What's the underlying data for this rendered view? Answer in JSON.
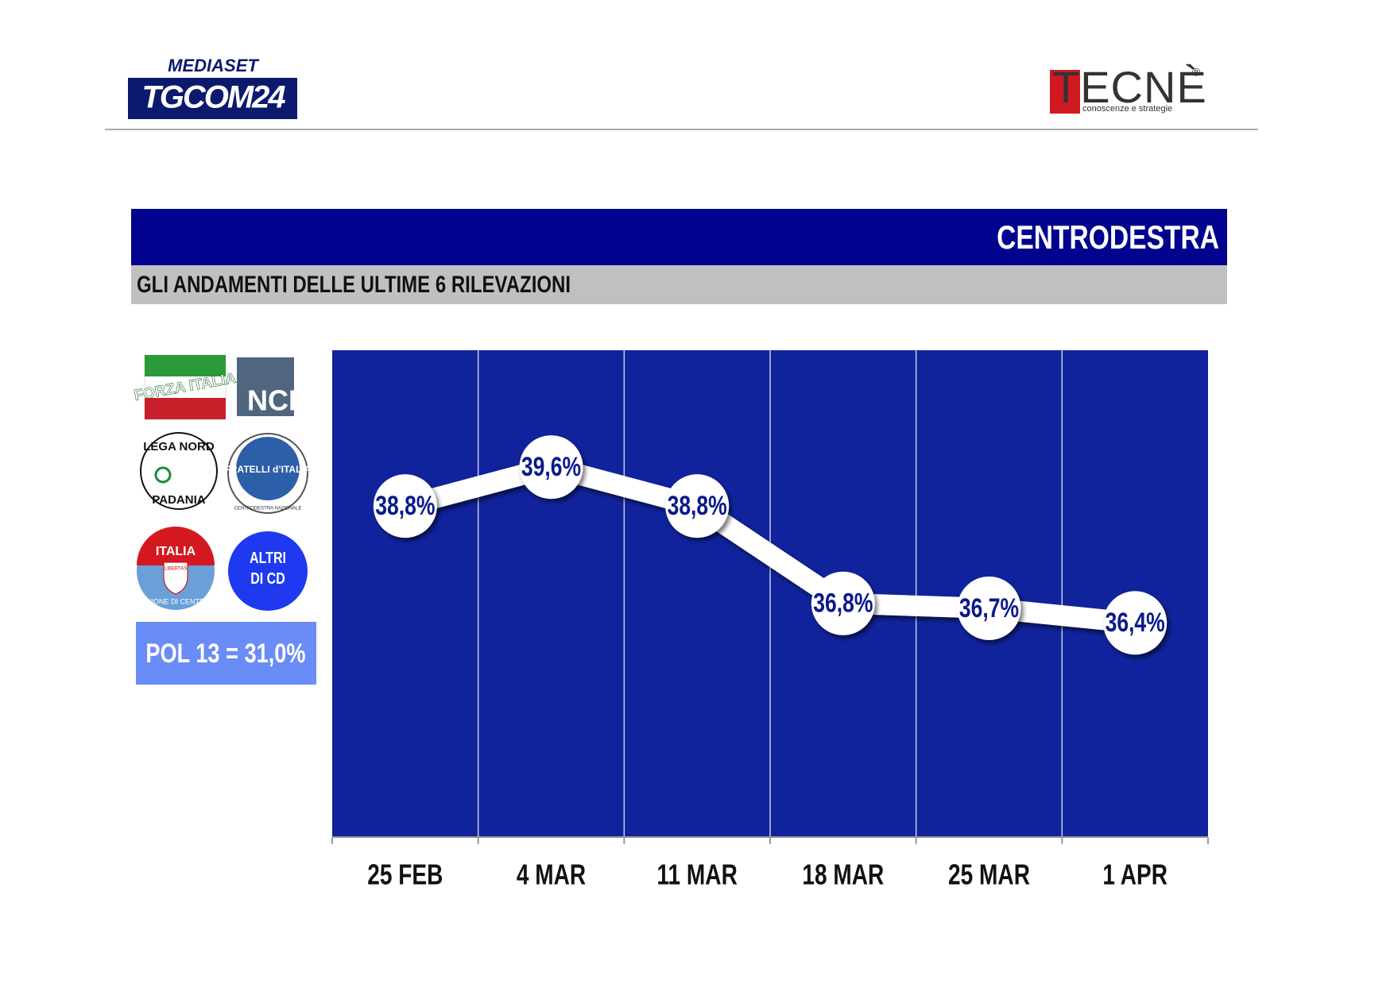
{
  "header": {
    "broadcaster": "MEDIASET",
    "channel": "TGCOM24",
    "pollster": "TECNÈ",
    "registered": "®",
    "pollster_tagline": "conoscenze e strategie"
  },
  "banner": {
    "title": "CENTRODESTRA",
    "subtitle": "GLI ANDAMENTI DELLE ULTIME 6 RILEVAZIONI"
  },
  "parties": {
    "forza_italia": "FORZA ITALIA",
    "ncd": "NCD",
    "lega_top": "LEGA NORD",
    "lega_bottom": "PADANIA",
    "fdi": "FRATELLI d’ITALIA",
    "fdi_ring": "CENTRODESTRA NAZIONALE",
    "udc_top": "ITALIA",
    "udc_shield": "LIBERTAS",
    "udc_ring": "UNIONE DI CENTRO",
    "altri": "ALTRI DI CD",
    "pol13": "POL 13 = 31,0%"
  },
  "chart_data": {
    "type": "line",
    "categories": [
      "25 FEB",
      "4 MAR",
      "11 MAR",
      "18 MAR",
      "25 MAR",
      "1 APR"
    ],
    "values": [
      38.8,
      39.6,
      38.8,
      36.8,
      36.7,
      36.4
    ],
    "value_labels": [
      "38,8%",
      "39,6%",
      "38,8%",
      "36,8%",
      "36,7%",
      "36,4%"
    ],
    "ylim": [
      32,
      42
    ],
    "color": "#ffffff",
    "background": "#10239c"
  }
}
